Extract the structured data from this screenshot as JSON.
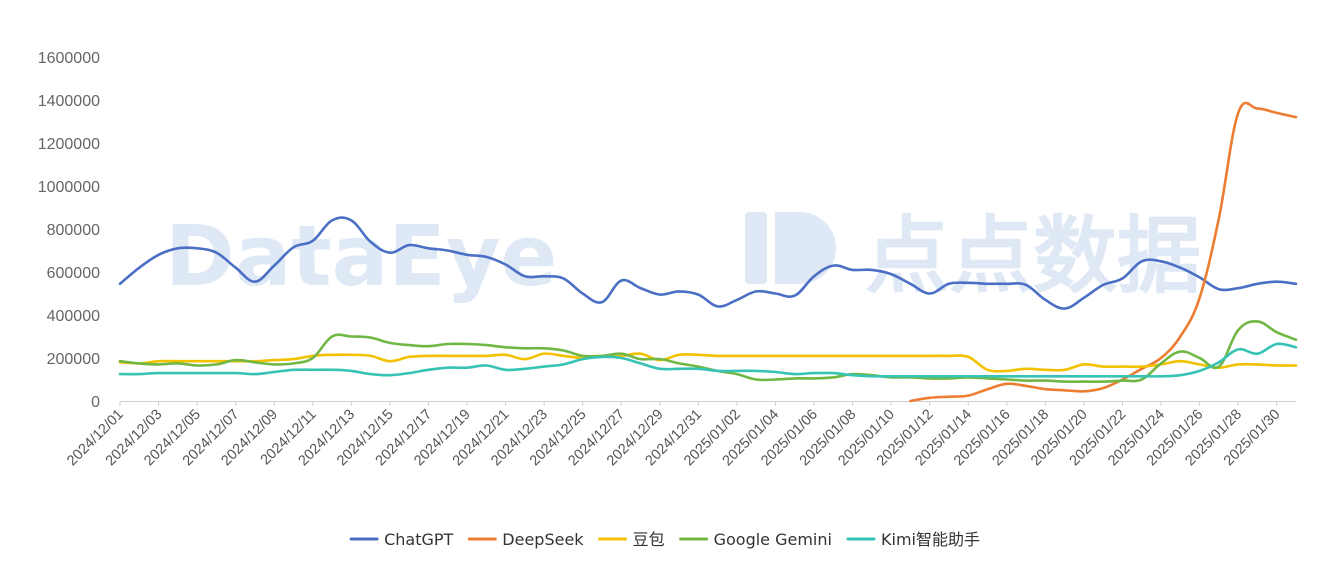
{
  "chart_data": {
    "type": "line",
    "ylim": [
      0,
      1600000
    ],
    "yticks": [
      "0",
      "200000",
      "400000",
      "600000",
      "800000",
      "1000000",
      "1200000",
      "1400000",
      "1600000"
    ],
    "x": [
      "2024/12/01",
      "2024/12/02",
      "2024/12/03",
      "2024/12/04",
      "2024/12/05",
      "2024/12/06",
      "2024/12/07",
      "2024/12/08",
      "2024/12/09",
      "2024/12/10",
      "2024/12/11",
      "2024/12/12",
      "2024/12/13",
      "2024/12/14",
      "2024/12/15",
      "2024/12/16",
      "2024/12/17",
      "2024/12/18",
      "2024/12/19",
      "2024/12/20",
      "2024/12/21",
      "2024/12/22",
      "2024/12/23",
      "2024/12/24",
      "2024/12/25",
      "2024/12/26",
      "2024/12/27",
      "2024/12/28",
      "2024/12/29",
      "2024/12/30",
      "2024/12/31",
      "2025/01/01",
      "2025/01/02",
      "2025/01/03",
      "2025/01/04",
      "2025/01/05",
      "2025/01/06",
      "2025/01/07",
      "2025/01/08",
      "2025/01/09",
      "2025/01/10",
      "2025/01/11",
      "2025/01/12",
      "2025/01/13",
      "2025/01/14",
      "2025/01/15",
      "2025/01/16",
      "2025/01/17",
      "2025/01/18",
      "2025/01/19",
      "2025/01/20",
      "2025/01/21",
      "2025/01/22",
      "2025/01/23",
      "2025/01/24",
      "2025/01/25",
      "2025/01/26",
      "2025/01/27",
      "2025/01/28",
      "2025/01/29",
      "2025/01/30",
      "2025/01/31"
    ],
    "xtick_labels": [
      "2024/12/01",
      "2024/12/03",
      "2024/12/05",
      "2024/12/07",
      "2024/12/09",
      "2024/12/11",
      "2024/12/13",
      "2024/12/15",
      "2024/12/17",
      "2024/12/19",
      "2024/12/21",
      "2024/12/23",
      "2024/12/25",
      "2024/12/27",
      "2024/12/29",
      "2024/12/31",
      "2025/01/02",
      "2025/01/04",
      "2025/01/06",
      "2025/01/08",
      "2025/01/10",
      "2025/01/12",
      "2025/01/14",
      "2025/01/16",
      "2025/01/18",
      "2025/01/20",
      "2025/01/22",
      "2025/01/24",
      "2025/01/26",
      "2025/01/28",
      "2025/01/30"
    ],
    "series": [
      {
        "name": "ChatGPT",
        "color": "#4a6fc4",
        "values": [
          545000,
          620000,
          680000,
          710000,
          710000,
          690000,
          620000,
          555000,
          630000,
          715000,
          745000,
          840000,
          840000,
          740000,
          690000,
          725000,
          710000,
          700000,
          680000,
          670000,
          635000,
          580000,
          580000,
          570000,
          500000,
          460000,
          560000,
          525000,
          495000,
          510000,
          495000,
          440000,
          470000,
          510000,
          500000,
          490000,
          580000,
          630000,
          610000,
          610000,
          590000,
          545000,
          500000,
          545000,
          550000,
          545000,
          545000,
          540000,
          470000,
          430000,
          480000,
          540000,
          570000,
          650000,
          650000,
          620000,
          575000,
          520000,
          525000,
          545000,
          555000,
          545000
        ]
      },
      {
        "name": "DeepSeek",
        "color": "#ed7d31",
        "values": [
          null,
          null,
          null,
          null,
          null,
          null,
          null,
          null,
          null,
          null,
          null,
          null,
          null,
          null,
          null,
          null,
          null,
          null,
          null,
          null,
          null,
          null,
          null,
          null,
          null,
          null,
          null,
          null,
          null,
          null,
          null,
          null,
          null,
          null,
          null,
          null,
          null,
          null,
          null,
          null,
          null,
          0,
          15000,
          20000,
          25000,
          55000,
          80000,
          70000,
          55000,
          50000,
          45000,
          60000,
          100000,
          150000,
          200000,
          300000,
          480000,
          850000,
          1340000,
          1360000,
          1340000,
          1320000
        ]
      },
      {
        "name": "豆包",
        "color": "#f2c200",
        "values": [
          180000,
          175000,
          185000,
          185000,
          185000,
          185000,
          185000,
          185000,
          190000,
          195000,
          210000,
          215000,
          215000,
          210000,
          185000,
          205000,
          210000,
          210000,
          210000,
          210000,
          215000,
          195000,
          220000,
          210000,
          200000,
          210000,
          210000,
          220000,
          190000,
          215000,
          215000,
          210000,
          210000,
          210000,
          210000,
          210000,
          210000,
          210000,
          210000,
          210000,
          210000,
          210000,
          210000,
          210000,
          205000,
          145000,
          140000,
          150000,
          145000,
          145000,
          170000,
          160000,
          160000,
          160000,
          170000,
          185000,
          170000,
          155000,
          170000,
          170000,
          165000,
          165000
        ]
      },
      {
        "name": "Google Gemini",
        "color": "#70b745",
        "values": [
          185000,
          175000,
          170000,
          175000,
          165000,
          170000,
          190000,
          180000,
          170000,
          175000,
          200000,
          300000,
          300000,
          295000,
          270000,
          260000,
          255000,
          265000,
          265000,
          260000,
          250000,
          245000,
          245000,
          235000,
          210000,
          210000,
          220000,
          195000,
          195000,
          175000,
          160000,
          140000,
          125000,
          100000,
          100000,
          105000,
          105000,
          110000,
          125000,
          120000,
          110000,
          110000,
          105000,
          105000,
          110000,
          105000,
          100000,
          95000,
          95000,
          90000,
          90000,
          90000,
          95000,
          100000,
          175000,
          230000,
          200000,
          160000,
          330000,
          370000,
          320000,
          285000
        ]
      },
      {
        "name": "Kimi智能助手",
        "color": "#36c2b4",
        "values": [
          125000,
          125000,
          130000,
          130000,
          130000,
          130000,
          130000,
          125000,
          135000,
          145000,
          145000,
          145000,
          140000,
          125000,
          120000,
          130000,
          145000,
          155000,
          155000,
          165000,
          145000,
          150000,
          160000,
          170000,
          195000,
          205000,
          200000,
          175000,
          150000,
          150000,
          150000,
          140000,
          140000,
          140000,
          135000,
          125000,
          130000,
          130000,
          120000,
          115000,
          115000,
          115000,
          115000,
          115000,
          115000,
          115000,
          115000,
          115000,
          115000,
          115000,
          115000,
          115000,
          115000,
          115000,
          115000,
          120000,
          140000,
          180000,
          240000,
          220000,
          265000,
          250000
        ]
      }
    ],
    "legend_position": "bottom-center",
    "grid": false
  },
  "watermark": {
    "left_text": "DataEye",
    "right_text": "点点数据"
  }
}
